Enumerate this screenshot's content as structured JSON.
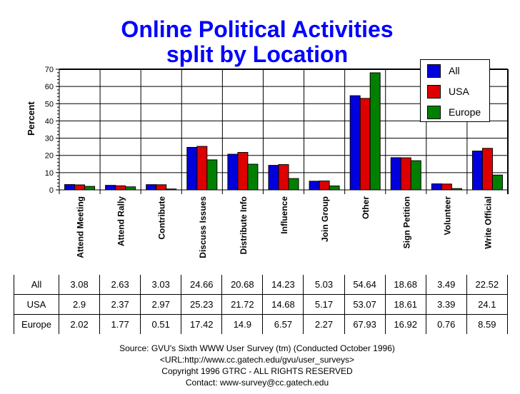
{
  "title": {
    "line1": "Online Political Activities",
    "line2": "split by Location"
  },
  "legend": {
    "items": [
      {
        "label": "All",
        "color": "#0000dd"
      },
      {
        "label": "USA",
        "color": "#dd0000"
      },
      {
        "label": "Europe",
        "color": "#008000"
      }
    ]
  },
  "table": {
    "rows": [
      {
        "label": "All",
        "values": [
          "3.08",
          "2.63",
          "3.03",
          "24.66",
          "20.68",
          "14.23",
          "5.03",
          "54.64",
          "18.68",
          "3.49",
          "22.52"
        ]
      },
      {
        "label": "USA",
        "values": [
          "2.9",
          "2.37",
          "2.97",
          "25.23",
          "21.72",
          "14.68",
          "5.17",
          "53.07",
          "18.61",
          "3.39",
          "24.1"
        ]
      },
      {
        "label": "Europe",
        "values": [
          "2.02",
          "1.77",
          "0.51",
          "17.42",
          "14.9",
          "6.57",
          "2.27",
          "67.93",
          "16.92",
          "0.76",
          "8.59"
        ]
      }
    ]
  },
  "footer": {
    "line1": "Source: GVU's Sixth WWW User Survey (tm) (Conducted October 1996)",
    "line2": "<URL:http://www.cc.gatech.edu/gvu/user_surveys>",
    "line3": "Copyright 1996 GTRC - ALL RIGHTS RESERVED",
    "line4": "Contact: www-survey@cc.gatech.edu"
  },
  "chart_data": {
    "type": "bar",
    "title": "Online Political Activities split by Location",
    "xlabel": "",
    "ylabel": "Percent",
    "ylim": [
      0,
      70
    ],
    "yticks": [
      0,
      10,
      20,
      30,
      40,
      50,
      60,
      70
    ],
    "grid": true,
    "legend_position": "top-right",
    "categories": [
      "Attend Meeting",
      "Attend Rally",
      "Contribute",
      "Discuss Issues",
      "Distribute Info",
      "Influence",
      "Join Group",
      "Other",
      "Sign Petition",
      "Volunteer",
      "Write Official"
    ],
    "series": [
      {
        "name": "All",
        "color": "#0000dd",
        "values": [
          3.08,
          2.63,
          3.03,
          24.66,
          20.68,
          14.23,
          5.03,
          54.64,
          18.68,
          3.49,
          22.52
        ]
      },
      {
        "name": "USA",
        "color": "#dd0000",
        "values": [
          2.9,
          2.37,
          2.97,
          25.23,
          21.72,
          14.68,
          5.17,
          53.07,
          18.61,
          3.39,
          24.1
        ]
      },
      {
        "name": "Europe",
        "color": "#008000",
        "values": [
          2.02,
          1.77,
          0.51,
          17.42,
          14.9,
          6.57,
          2.27,
          67.93,
          16.92,
          0.76,
          8.59
        ]
      }
    ]
  }
}
